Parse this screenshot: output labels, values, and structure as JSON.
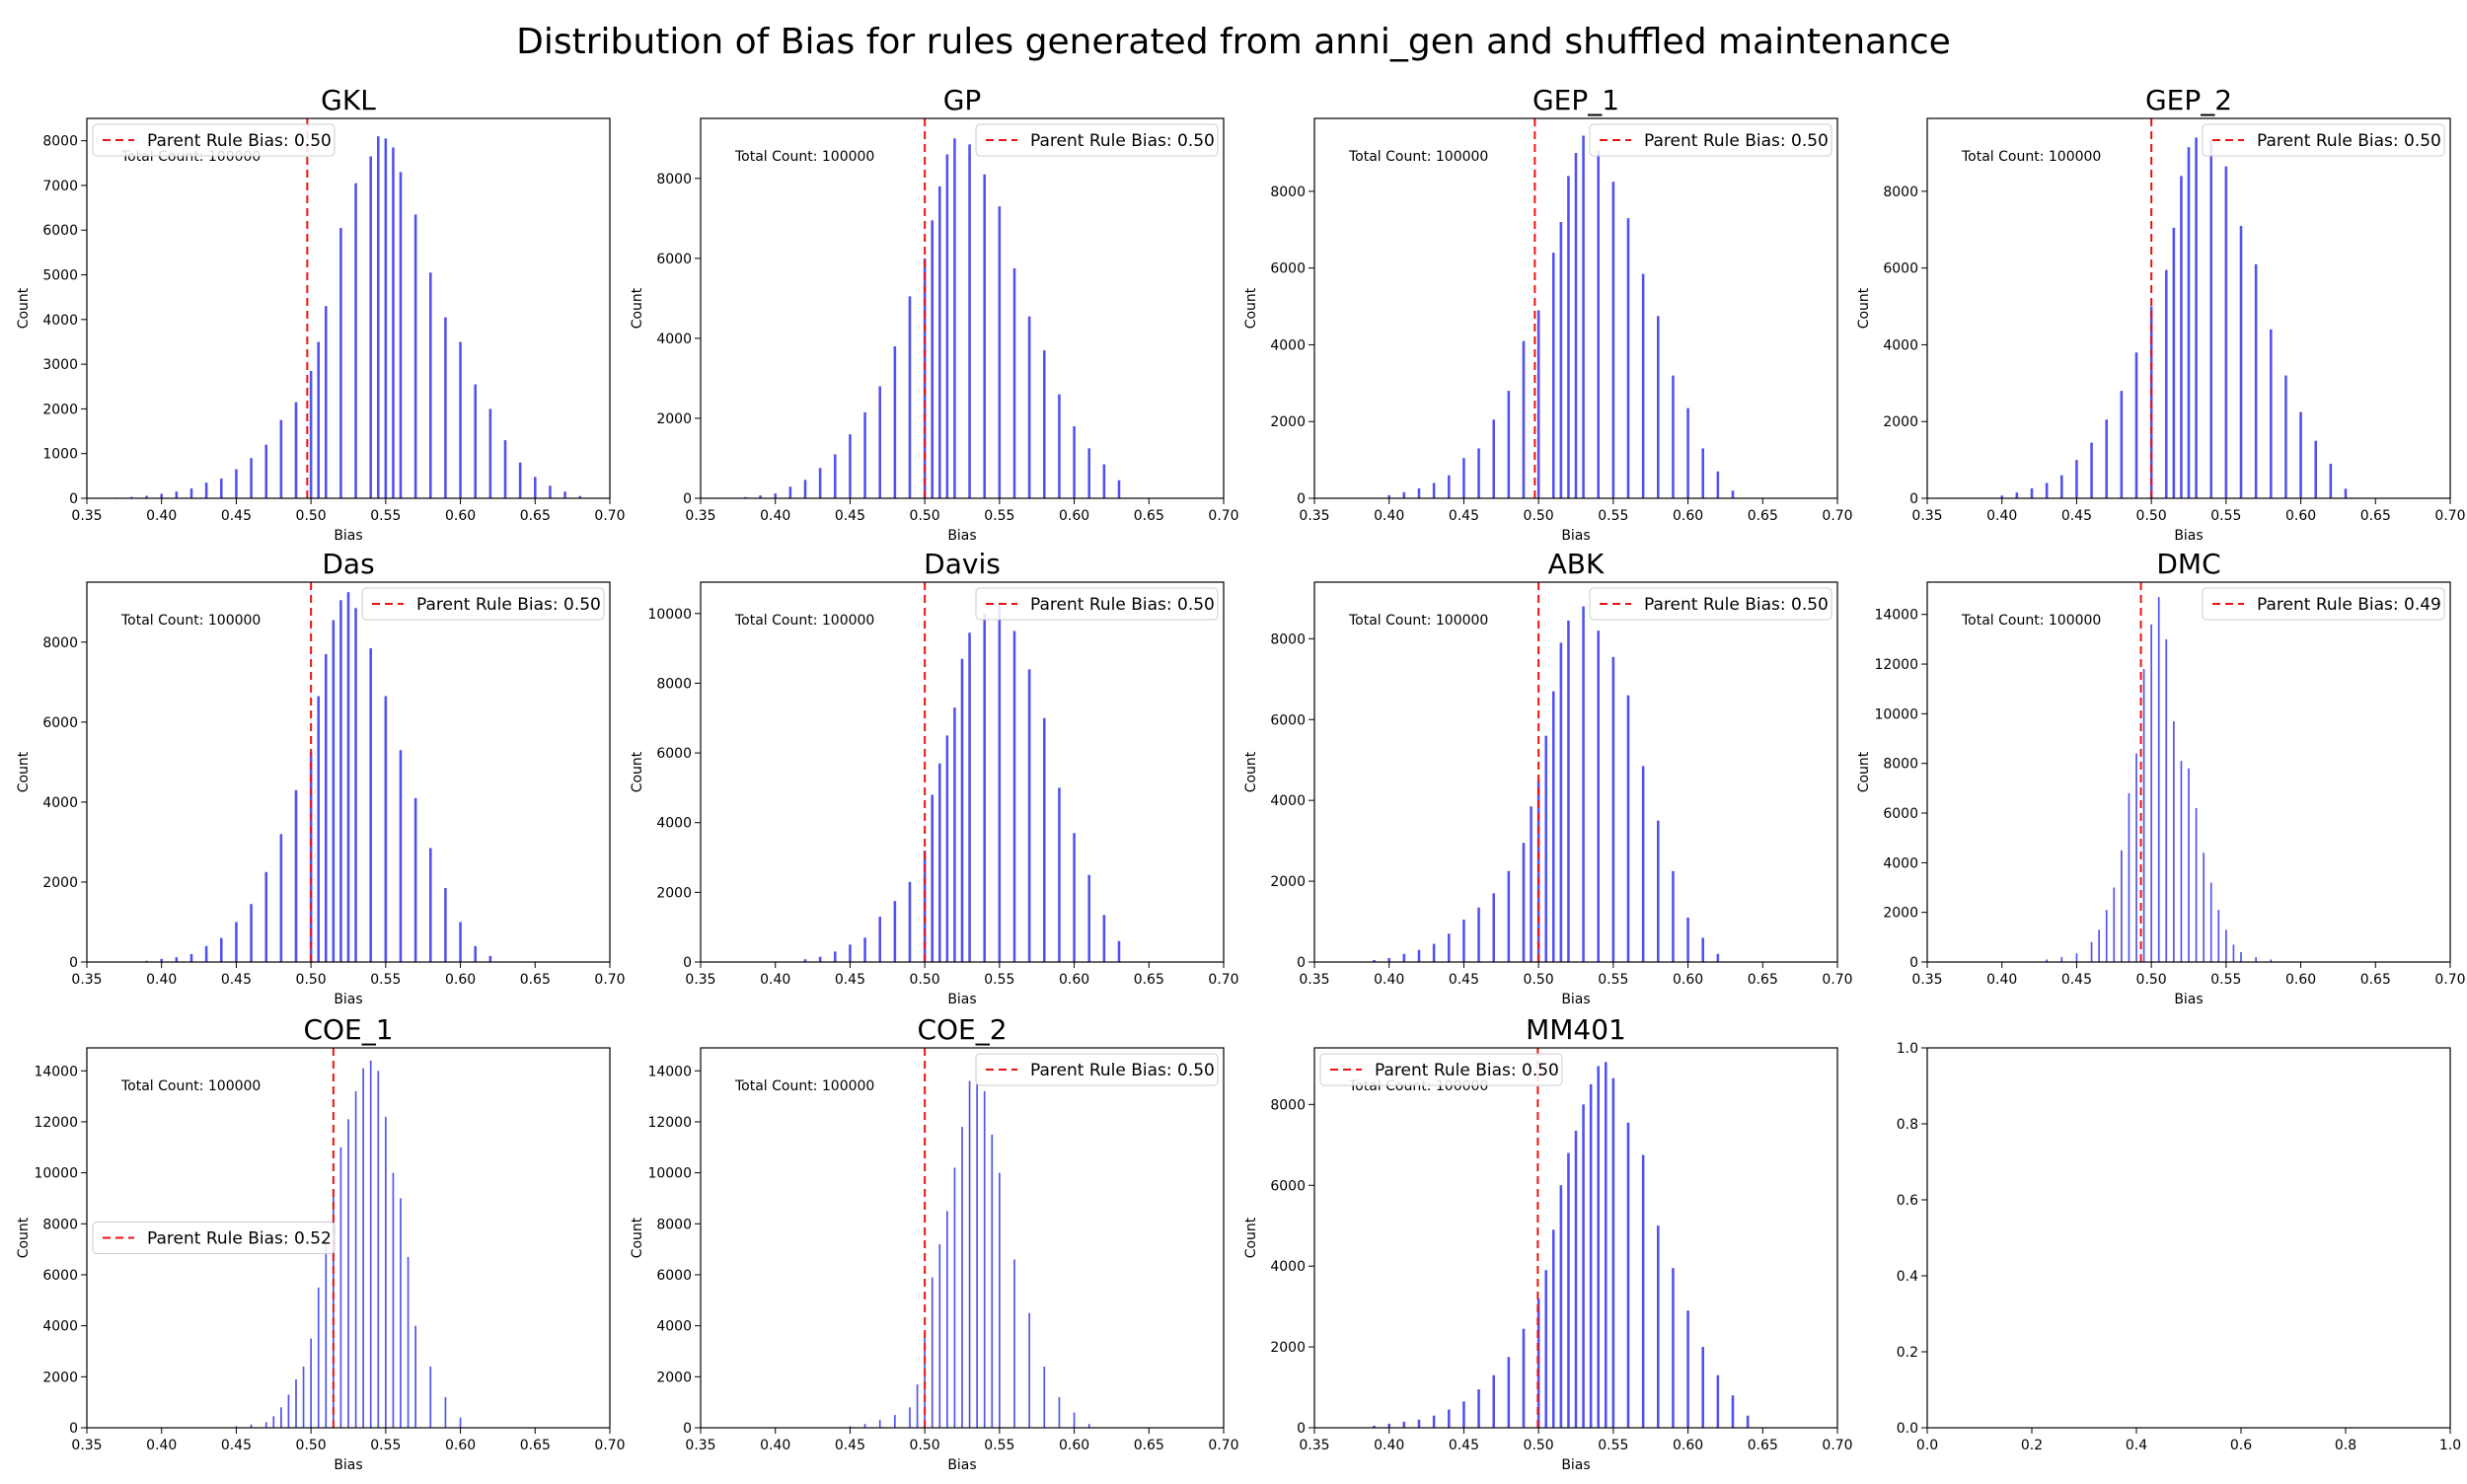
{
  "figure": {
    "suptitle": "Distribution of Bias for rules generated from anni_gen and shuffled maintenance",
    "bar_color": "#3333ee",
    "line_color": "#ee1111"
  },
  "chart_data": [
    {
      "type": "bar",
      "title": "GKL",
      "xlabel": "Bias",
      "ylabel": "Count",
      "xlim": [
        0.35,
        0.7
      ],
      "ylim": [
        0,
        8500
      ],
      "xticks": [
        0.35,
        0.4,
        0.45,
        0.5,
        0.55,
        0.6,
        0.65,
        0.7
      ],
      "yticks": [
        0,
        1000,
        2000,
        3000,
        4000,
        5000,
        6000,
        7000,
        8000
      ],
      "annotation": "Total Count: 100000",
      "legend": {
        "label": "Parent Rule Bias: 0.50",
        "position": "top-left"
      },
      "parent_bias": 0.4975,
      "bar_width": 0.0017,
      "bias": [
        0.36,
        0.37,
        0.38,
        0.39,
        0.4,
        0.41,
        0.42,
        0.43,
        0.44,
        0.45,
        0.46,
        0.47,
        0.48,
        0.49,
        0.5,
        0.505,
        0.51,
        0.52,
        0.53,
        0.54,
        0.545,
        0.55,
        0.555,
        0.56,
        0.57,
        0.58,
        0.59,
        0.6,
        0.61,
        0.62,
        0.63,
        0.64,
        0.65,
        0.66,
        0.67,
        0.68
      ],
      "counts": [
        8,
        15,
        30,
        55,
        100,
        150,
        220,
        350,
        440,
        650,
        900,
        1200,
        1750,
        2150,
        2850,
        3500,
        4300,
        6050,
        7050,
        7650,
        8100,
        8050,
        7850,
        7300,
        6350,
        5050,
        4050,
        3500,
        2550,
        2000,
        1300,
        800,
        480,
        280,
        150,
        50
      ]
    },
    {
      "type": "bar",
      "title": "GP",
      "xlabel": "Bias",
      "ylabel": "Count",
      "xlim": [
        0.35,
        0.7
      ],
      "ylim": [
        0,
        9500
      ],
      "xticks": [
        0.35,
        0.4,
        0.45,
        0.5,
        0.55,
        0.6,
        0.65,
        0.7
      ],
      "yticks": [
        0,
        2000,
        4000,
        6000,
        8000
      ],
      "annotation": "Total Count: 100000",
      "legend": {
        "label": "Parent Rule Bias: 0.50",
        "position": "top-right"
      },
      "parent_bias": 0.5,
      "bar_width": 0.0017,
      "bias": [
        0.38,
        0.39,
        0.4,
        0.41,
        0.42,
        0.43,
        0.44,
        0.45,
        0.46,
        0.47,
        0.48,
        0.49,
        0.5,
        0.505,
        0.51,
        0.515,
        0.52,
        0.53,
        0.54,
        0.55,
        0.56,
        0.57,
        0.58,
        0.59,
        0.6,
        0.61,
        0.62,
        0.63
      ],
      "counts": [
        30,
        70,
        120,
        290,
        460,
        760,
        1100,
        1600,
        2150,
        2800,
        3800,
        5050,
        6000,
        6950,
        7800,
        8600,
        9000,
        8850,
        8100,
        7300,
        5750,
        4550,
        3700,
        2600,
        1800,
        1250,
        850,
        450
      ]
    },
    {
      "type": "bar",
      "title": "GEP_1",
      "xlabel": "Bias",
      "ylabel": "Count",
      "xlim": [
        0.35,
        0.7
      ],
      "ylim": [
        0,
        9900
      ],
      "xticks": [
        0.35,
        0.4,
        0.45,
        0.5,
        0.55,
        0.6,
        0.65,
        0.7
      ],
      "yticks": [
        0,
        2000,
        4000,
        6000,
        8000
      ],
      "annotation": "Total Count: 100000",
      "legend": {
        "label": "Parent Rule Bias: 0.50",
        "position": "top-right"
      },
      "parent_bias": 0.4975,
      "bar_width": 0.0017,
      "bias": [
        0.4,
        0.41,
        0.42,
        0.43,
        0.44,
        0.45,
        0.46,
        0.47,
        0.48,
        0.49,
        0.5,
        0.51,
        0.515,
        0.52,
        0.525,
        0.53,
        0.54,
        0.55,
        0.56,
        0.57,
        0.58,
        0.59,
        0.6,
        0.61,
        0.62,
        0.63
      ],
      "counts": [
        80,
        160,
        260,
        400,
        600,
        1050,
        1300,
        2050,
        2800,
        4100,
        4900,
        6400,
        7200,
        8400,
        9000,
        9450,
        9050,
        8250,
        7300,
        5850,
        4750,
        3200,
        2350,
        1300,
        700,
        200
      ]
    },
    {
      "type": "bar",
      "title": "GEP_2",
      "xlabel": "Bias",
      "ylabel": "Count",
      "xlim": [
        0.35,
        0.7
      ],
      "ylim": [
        0,
        9900
      ],
      "xticks": [
        0.35,
        0.4,
        0.45,
        0.5,
        0.55,
        0.6,
        0.65,
        0.7
      ],
      "yticks": [
        0,
        2000,
        4000,
        6000,
        8000
      ],
      "annotation": "Total Count: 100000",
      "legend": {
        "label": "Parent Rule Bias: 0.50",
        "position": "top-right"
      },
      "parent_bias": 0.5,
      "bar_width": 0.0017,
      "bias": [
        0.4,
        0.41,
        0.42,
        0.43,
        0.44,
        0.45,
        0.46,
        0.47,
        0.48,
        0.49,
        0.5,
        0.51,
        0.515,
        0.52,
        0.525,
        0.53,
        0.54,
        0.55,
        0.56,
        0.57,
        0.58,
        0.59,
        0.6,
        0.61,
        0.62,
        0.63
      ],
      "counts": [
        70,
        150,
        260,
        400,
        600,
        1000,
        1450,
        2050,
        2800,
        3800,
        5000,
        5950,
        7050,
        8400,
        9150,
        9400,
        9350,
        8650,
        7100,
        6100,
        4400,
        3200,
        2250,
        1500,
        900,
        250
      ]
    },
    {
      "type": "bar",
      "title": "Das",
      "xlabel": "Bias",
      "ylabel": "Count",
      "xlim": [
        0.35,
        0.7
      ],
      "ylim": [
        0,
        9500
      ],
      "xticks": [
        0.35,
        0.4,
        0.45,
        0.5,
        0.55,
        0.6,
        0.65,
        0.7
      ],
      "yticks": [
        0,
        2000,
        4000,
        6000,
        8000
      ],
      "annotation": "Total Count: 100000",
      "legend": {
        "label": "Parent Rule Bias: 0.50",
        "position": "top-right"
      },
      "parent_bias": 0.5,
      "bar_width": 0.0017,
      "bias": [
        0.39,
        0.4,
        0.41,
        0.42,
        0.43,
        0.44,
        0.45,
        0.46,
        0.47,
        0.48,
        0.49,
        0.5,
        0.505,
        0.51,
        0.515,
        0.52,
        0.525,
        0.53,
        0.54,
        0.55,
        0.56,
        0.57,
        0.58,
        0.59,
        0.6,
        0.61,
        0.62
      ],
      "counts": [
        30,
        80,
        120,
        200,
        400,
        600,
        1000,
        1450,
        2250,
        3200,
        4300,
        5250,
        6650,
        7700,
        8550,
        9050,
        9250,
        8850,
        7850,
        6650,
        5300,
        4100,
        2850,
        1850,
        1000,
        400,
        150
      ]
    },
    {
      "type": "bar",
      "title": "Davis",
      "xlabel": "Bias",
      "ylabel": "Count",
      "xlim": [
        0.35,
        0.7
      ],
      "ylim": [
        0,
        10900
      ],
      "xticks": [
        0.35,
        0.4,
        0.45,
        0.5,
        0.55,
        0.6,
        0.65,
        0.7
      ],
      "yticks": [
        0,
        2000,
        4000,
        6000,
        8000,
        10000
      ],
      "annotation": "Total Count: 100000",
      "legend": {
        "label": "Parent Rule Bias: 0.50",
        "position": "top-right"
      },
      "parent_bias": 0.5,
      "bar_width": 0.0017,
      "bias": [
        0.42,
        0.43,
        0.44,
        0.45,
        0.46,
        0.47,
        0.48,
        0.49,
        0.5,
        0.505,
        0.51,
        0.515,
        0.52,
        0.525,
        0.53,
        0.54,
        0.55,
        0.56,
        0.57,
        0.58,
        0.59,
        0.6,
        0.61,
        0.62,
        0.63
      ],
      "counts": [
        80,
        150,
        300,
        500,
        700,
        1300,
        1750,
        2300,
        3200,
        4800,
        5700,
        6500,
        7300,
        8700,
        9450,
        10000,
        10300,
        9500,
        8400,
        7000,
        5000,
        3700,
        2500,
        1350,
        600
      ]
    },
    {
      "type": "bar",
      "title": "ABK",
      "xlabel": "Bias",
      "ylabel": "Count",
      "xlim": [
        0.35,
        0.7
      ],
      "ylim": [
        0,
        9400
      ],
      "xticks": [
        0.35,
        0.4,
        0.45,
        0.5,
        0.55,
        0.6,
        0.65,
        0.7
      ],
      "yticks": [
        0,
        2000,
        4000,
        6000,
        8000
      ],
      "annotation": "Total Count: 100000",
      "legend": {
        "label": "Parent Rule Bias: 0.50",
        "position": "top-right"
      },
      "parent_bias": 0.5,
      "bar_width": 0.0017,
      "bias": [
        0.39,
        0.4,
        0.41,
        0.42,
        0.43,
        0.44,
        0.45,
        0.46,
        0.47,
        0.48,
        0.49,
        0.495,
        0.5,
        0.505,
        0.51,
        0.515,
        0.52,
        0.53,
        0.54,
        0.55,
        0.56,
        0.57,
        0.58,
        0.59,
        0.6,
        0.61,
        0.62
      ],
      "counts": [
        50,
        100,
        200,
        300,
        450,
        700,
        1050,
        1350,
        1700,
        2250,
        2950,
        3850,
        4500,
        5600,
        6700,
        7900,
        8450,
        8800,
        8200,
        7550,
        6600,
        4850,
        3500,
        2250,
        1100,
        600,
        200
      ]
    },
    {
      "type": "bar",
      "title": "DMC",
      "xlabel": "Bias",
      "ylabel": "Count",
      "xlim": [
        0.35,
        0.7
      ],
      "ylim": [
        0,
        15300
      ],
      "xticks": [
        0.35,
        0.4,
        0.45,
        0.5,
        0.55,
        0.6,
        0.65,
        0.7
      ],
      "yticks": [
        0,
        2000,
        4000,
        6000,
        8000,
        10000,
        12000,
        14000
      ],
      "annotation": "Total Count: 100000",
      "legend": {
        "label": "Parent Rule Bias: 0.49",
        "position": "top-right"
      },
      "parent_bias": 0.493,
      "bar_width": 0.0011,
      "bias": [
        0.43,
        0.44,
        0.45,
        0.46,
        0.465,
        0.47,
        0.475,
        0.48,
        0.485,
        0.49,
        0.495,
        0.5,
        0.505,
        0.51,
        0.515,
        0.52,
        0.525,
        0.53,
        0.535,
        0.54,
        0.545,
        0.55,
        0.555,
        0.56,
        0.57,
        0.58
      ],
      "counts": [
        100,
        200,
        350,
        800,
        1300,
        2100,
        3000,
        4500,
        6800,
        8400,
        11800,
        13600,
        14700,
        13000,
        9700,
        8100,
        7800,
        6200,
        4400,
        3200,
        2100,
        1300,
        700,
        400,
        200,
        100
      ]
    },
    {
      "type": "bar",
      "title": "COE_1",
      "xlabel": "Bias",
      "ylabel": "Count",
      "xlim": [
        0.35,
        0.7
      ],
      "ylim": [
        0,
        14900
      ],
      "xticks": [
        0.35,
        0.4,
        0.45,
        0.5,
        0.55,
        0.6,
        0.65,
        0.7
      ],
      "yticks": [
        0,
        2000,
        4000,
        6000,
        8000,
        10000,
        12000,
        14000
      ],
      "annotation": "Total Count: 100000",
      "legend": {
        "label": "Parent Rule Bias: 0.52",
        "position": "center-left"
      },
      "parent_bias": 0.515,
      "bar_width": 0.0011,
      "bias": [
        0.45,
        0.46,
        0.47,
        0.475,
        0.48,
        0.485,
        0.49,
        0.495,
        0.5,
        0.505,
        0.51,
        0.515,
        0.52,
        0.525,
        0.53,
        0.535,
        0.54,
        0.545,
        0.55,
        0.555,
        0.56,
        0.565,
        0.57,
        0.58,
        0.59,
        0.6
      ],
      "counts": [
        60,
        130,
        220,
        450,
        800,
        1300,
        1900,
        2400,
        3500,
        5500,
        7500,
        9300,
        11000,
        12100,
        13200,
        14100,
        14400,
        14000,
        12200,
        10000,
        9000,
        6700,
        4000,
        2400,
        1200,
        400
      ]
    },
    {
      "type": "bar",
      "title": "COE_2",
      "xlabel": "Bias",
      "ylabel": "Count",
      "xlim": [
        0.35,
        0.7
      ],
      "ylim": [
        0,
        14900
      ],
      "xticks": [
        0.35,
        0.4,
        0.45,
        0.5,
        0.55,
        0.6,
        0.65,
        0.7
      ],
      "yticks": [
        0,
        2000,
        4000,
        6000,
        8000,
        10000,
        12000,
        14000
      ],
      "annotation": "Total Count: 100000",
      "legend": {
        "label": "Parent Rule Bias: 0.50",
        "position": "top-right"
      },
      "parent_bias": 0.5,
      "bar_width": 0.0011,
      "bias": [
        0.45,
        0.46,
        0.47,
        0.48,
        0.49,
        0.495,
        0.5,
        0.505,
        0.51,
        0.515,
        0.52,
        0.525,
        0.53,
        0.535,
        0.54,
        0.545,
        0.55,
        0.56,
        0.57,
        0.58,
        0.59,
        0.6,
        0.61
      ],
      "counts": [
        60,
        150,
        300,
        500,
        800,
        1700,
        3600,
        5900,
        7200,
        8500,
        10200,
        11800,
        13600,
        13500,
        13200,
        11500,
        10000,
        6600,
        4500,
        2400,
        1200,
        600,
        150
      ]
    },
    {
      "type": "bar",
      "title": "MM401",
      "xlabel": "Bias",
      "ylabel": "Count",
      "xlim": [
        0.35,
        0.7
      ],
      "ylim": [
        0,
        9400
      ],
      "xticks": [
        0.35,
        0.4,
        0.45,
        0.5,
        0.55,
        0.6,
        0.65,
        0.7
      ],
      "yticks": [
        0,
        2000,
        4000,
        6000,
        8000
      ],
      "annotation": "Total Count: 100000",
      "legend": {
        "label": "Parent Rule Bias: 0.50",
        "position": "top-left"
      },
      "parent_bias": 0.4995,
      "bar_width": 0.0017,
      "bias": [
        0.39,
        0.4,
        0.41,
        0.42,
        0.43,
        0.44,
        0.45,
        0.46,
        0.47,
        0.48,
        0.49,
        0.5,
        0.505,
        0.51,
        0.515,
        0.52,
        0.525,
        0.53,
        0.535,
        0.54,
        0.545,
        0.55,
        0.56,
        0.57,
        0.58,
        0.59,
        0.6,
        0.61,
        0.62,
        0.63,
        0.64
      ],
      "counts": [
        50,
        100,
        150,
        200,
        300,
        450,
        650,
        950,
        1300,
        1750,
        2450,
        3200,
        3900,
        4900,
        6000,
        6800,
        7350,
        8000,
        8500,
        8950,
        9050,
        8650,
        7550,
        6750,
        5000,
        3950,
        2900,
        2000,
        1300,
        800,
        300
      ]
    },
    {
      "type": "empty",
      "title": "",
      "xlim": [
        0.0,
        1.0
      ],
      "ylim": [
        0.0,
        1.0
      ],
      "xticks": [
        0.0,
        0.2,
        0.4,
        0.6,
        0.8,
        1.0
      ],
      "yticks": [
        0.0,
        0.2,
        0.4,
        0.6,
        0.8,
        1.0
      ]
    }
  ]
}
